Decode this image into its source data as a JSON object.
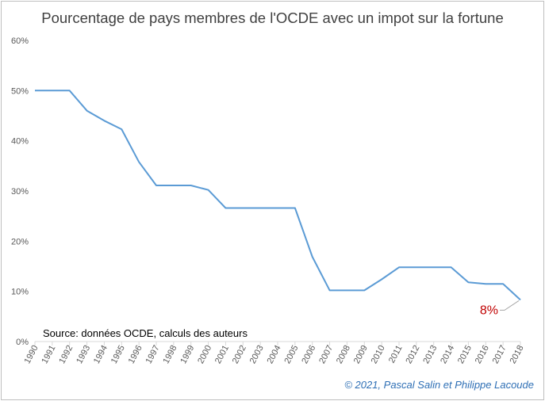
{
  "chart_data": {
    "type": "line",
    "title": "Pourcentage de pays membres de l'OCDE avec un impot sur la fortune",
    "xlabel": "",
    "ylabel": "",
    "x": [
      "1990",
      "1991",
      "1992",
      "1993",
      "1994",
      "1995",
      "1996",
      "1997",
      "1998",
      "1999",
      "2000",
      "2001",
      "2002",
      "2003",
      "2004",
      "2005",
      "2006",
      "2007",
      "2008",
      "2009",
      "2010",
      "2011",
      "2012",
      "2013",
      "2014",
      "2015",
      "2016",
      "2017",
      "2018"
    ],
    "series": [
      {
        "name": "",
        "color": "#5b9bd5",
        "values": [
          50,
          50,
          50,
          46,
          44,
          42.3,
          35.8,
          31.1,
          31.1,
          31.1,
          30.2,
          26.6,
          26.6,
          26.6,
          26.6,
          26.6,
          16.9,
          10.2,
          10.2,
          10.2,
          12.4,
          14.8,
          14.8,
          14.8,
          14.8,
          11.8,
          11.5,
          11.5,
          8.3
        ]
      }
    ],
    "ylim": [
      0,
      60
    ],
    "yticks": [
      0,
      10,
      20,
      30,
      40,
      50,
      60
    ],
    "ytick_labels": [
      "0%",
      "10%",
      "20%",
      "30%",
      "40%",
      "50%",
      "60%"
    ],
    "grid": false,
    "annotations": [
      {
        "text": "Source: données OCDE, calculs des auteurs"
      },
      {
        "text": "8%",
        "color": "#c00000",
        "points_to": "2018"
      }
    ]
  },
  "footer": {
    "copyright": "© 2021, Pascal Salin et Philippe Lacoude"
  }
}
